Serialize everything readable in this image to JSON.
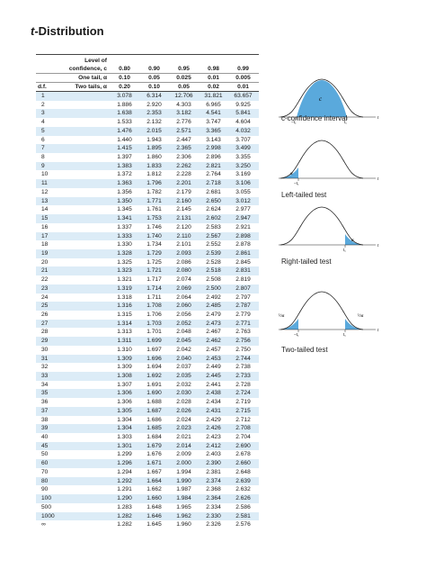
{
  "title_italic": "t",
  "title_rest": "-Distribution",
  "header": {
    "level_label_1": "Level of",
    "level_label_2": "confidence, c",
    "one_tail_label": "One tail, α",
    "two_tails_label": "Two tails, α",
    "df_label": "d.f.",
    "confidence": [
      "0.80",
      "0.90",
      "0.95",
      "0.98",
      "0.99"
    ],
    "one_tail": [
      "0.10",
      "0.05",
      "0.025",
      "0.01",
      "0.005"
    ],
    "two_tails": [
      "0.20",
      "0.10",
      "0.05",
      "0.02",
      "0.01"
    ]
  },
  "rows": [
    [
      "1",
      "3.078",
      "6.314",
      "12.706",
      "31.821",
      "63.657"
    ],
    [
      "2",
      "1.886",
      "2.920",
      "4.303",
      "6.965",
      "9.925"
    ],
    [
      "3",
      "1.638",
      "2.353",
      "3.182",
      "4.541",
      "5.841"
    ],
    [
      "4",
      "1.533",
      "2.132",
      "2.776",
      "3.747",
      "4.604"
    ],
    [
      "5",
      "1.476",
      "2.015",
      "2.571",
      "3.365",
      "4.032"
    ],
    [
      "6",
      "1.440",
      "1.943",
      "2.447",
      "3.143",
      "3.707"
    ],
    [
      "7",
      "1.415",
      "1.895",
      "2.365",
      "2.998",
      "3.499"
    ],
    [
      "8",
      "1.397",
      "1.860",
      "2.306",
      "2.896",
      "3.355"
    ],
    [
      "9",
      "1.383",
      "1.833",
      "2.262",
      "2.821",
      "3.250"
    ],
    [
      "10",
      "1.372",
      "1.812",
      "2.228",
      "2.764",
      "3.169"
    ],
    [
      "11",
      "1.363",
      "1.796",
      "2.201",
      "2.718",
      "3.106"
    ],
    [
      "12",
      "1.356",
      "1.782",
      "2.179",
      "2.681",
      "3.055"
    ],
    [
      "13",
      "1.350",
      "1.771",
      "2.160",
      "2.650",
      "3.012"
    ],
    [
      "14",
      "1.345",
      "1.761",
      "2.145",
      "2.624",
      "2.977"
    ],
    [
      "15",
      "1.341",
      "1.753",
      "2.131",
      "2.602",
      "2.947"
    ],
    [
      "16",
      "1.337",
      "1.746",
      "2.120",
      "2.583",
      "2.921"
    ],
    [
      "17",
      "1.333",
      "1.740",
      "2.110",
      "2.567",
      "2.898"
    ],
    [
      "18",
      "1.330",
      "1.734",
      "2.101",
      "2.552",
      "2.878"
    ],
    [
      "19",
      "1.328",
      "1.729",
      "2.093",
      "2.539",
      "2.861"
    ],
    [
      "20",
      "1.325",
      "1.725",
      "2.086",
      "2.528",
      "2.845"
    ],
    [
      "21",
      "1.323",
      "1.721",
      "2.080",
      "2.518",
      "2.831"
    ],
    [
      "22",
      "1.321",
      "1.717",
      "2.074",
      "2.508",
      "2.819"
    ],
    [
      "23",
      "1.319",
      "1.714",
      "2.069",
      "2.500",
      "2.807"
    ],
    [
      "24",
      "1.318",
      "1.711",
      "2.064",
      "2.492",
      "2.797"
    ],
    [
      "25",
      "1.316",
      "1.708",
      "2.060",
      "2.485",
      "2.787"
    ],
    [
      "26",
      "1.315",
      "1.706",
      "2.056",
      "2.479",
      "2.779"
    ],
    [
      "27",
      "1.314",
      "1.703",
      "2.052",
      "2.473",
      "2.771"
    ],
    [
      "28",
      "1.313",
      "1.701",
      "2.048",
      "2.467",
      "2.763"
    ],
    [
      "29",
      "1.311",
      "1.699",
      "2.045",
      "2.462",
      "2.756"
    ],
    [
      "30",
      "1.310",
      "1.697",
      "2.042",
      "2.457",
      "2.750"
    ],
    [
      "31",
      "1.309",
      "1.696",
      "2.040",
      "2.453",
      "2.744"
    ],
    [
      "32",
      "1.309",
      "1.694",
      "2.037",
      "2.449",
      "2.738"
    ],
    [
      "33",
      "1.308",
      "1.692",
      "2.035",
      "2.445",
      "2.733"
    ],
    [
      "34",
      "1.307",
      "1.691",
      "2.032",
      "2.441",
      "2.728"
    ],
    [
      "35",
      "1.306",
      "1.690",
      "2.030",
      "2.438",
      "2.724"
    ],
    [
      "36",
      "1.306",
      "1.688",
      "2.028",
      "2.434",
      "2.719"
    ],
    [
      "37",
      "1.305",
      "1.687",
      "2.026",
      "2.431",
      "2.715"
    ],
    [
      "38",
      "1.304",
      "1.686",
      "2.024",
      "2.429",
      "2.712"
    ],
    [
      "39",
      "1.304",
      "1.685",
      "2.023",
      "2.426",
      "2.708"
    ],
    [
      "40",
      "1.303",
      "1.684",
      "2.021",
      "2.423",
      "2.704"
    ],
    [
      "45",
      "1.301",
      "1.679",
      "2.014",
      "2.412",
      "2.690"
    ],
    [
      "50",
      "1.299",
      "1.676",
      "2.009",
      "2.403",
      "2.678"
    ],
    [
      "60",
      "1.296",
      "1.671",
      "2.000",
      "2.390",
      "2.660"
    ],
    [
      "70",
      "1.294",
      "1.667",
      "1.994",
      "2.381",
      "2.648"
    ],
    [
      "80",
      "1.292",
      "1.664",
      "1.990",
      "2.374",
      "2.639"
    ],
    [
      "90",
      "1.291",
      "1.662",
      "1.987",
      "2.368",
      "2.632"
    ],
    [
      "100",
      "1.290",
      "1.660",
      "1.984",
      "2.364",
      "2.626"
    ],
    [
      "500",
      "1.283",
      "1.648",
      "1.965",
      "2.334",
      "2.586"
    ],
    [
      "1000",
      "1.282",
      "1.646",
      "1.962",
      "2.330",
      "2.581"
    ],
    [
      "∞",
      "1.282",
      "1.645",
      "1.960",
      "2.326",
      "2.576"
    ]
  ],
  "diagrams": {
    "confidence_caption": "c-confidence interval",
    "left_caption": "Left-tailed test",
    "right_caption": "Right-tailed test",
    "two_caption": "Two-tailed test",
    "c_label": "c",
    "alpha_label": "α",
    "half_alpha_label": "½α",
    "t_label": "t",
    "neg_tc": "−t꜀",
    "tc": "t꜀",
    "fill_color": "#5aa9dc"
  }
}
